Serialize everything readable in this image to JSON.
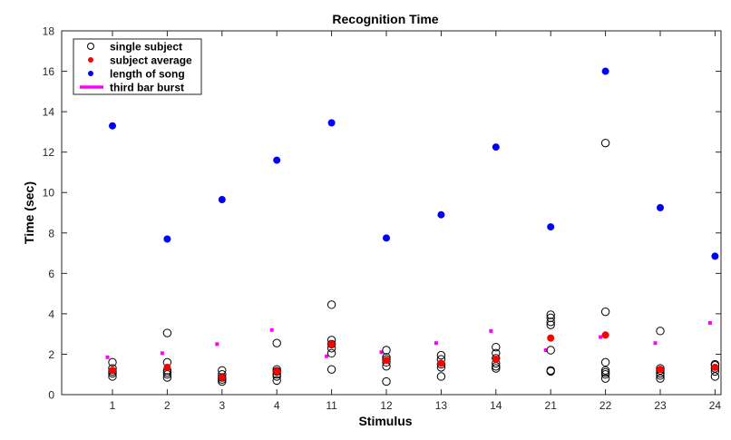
{
  "chart_data": {
    "type": "scatter",
    "title": "Recognition Time",
    "xlabel": "Stimulus",
    "ylabel": "Time (sec)",
    "categories": [
      "1",
      "2",
      "3",
      "4",
      "11",
      "12",
      "13",
      "14",
      "21",
      "22",
      "23",
      "24"
    ],
    "ylim": [
      0,
      18
    ],
    "yticks": [
      0,
      2,
      4,
      6,
      8,
      10,
      12,
      14,
      16,
      18
    ],
    "grid": false,
    "legend_position": "top-left",
    "legend": [
      "single subject",
      "subject average",
      "length of song",
      "third bar burst"
    ],
    "series": [
      {
        "name": "single subject",
        "marker": "open-circle",
        "color": "#000000",
        "values": [
          [
            0.9,
            1.05,
            1.15,
            1.3,
            1.6
          ],
          [
            0.85,
            1.0,
            1.1,
            1.2,
            1.6,
            3.05
          ],
          [
            0.65,
            0.75,
            0.85,
            1.0,
            1.2
          ],
          [
            0.7,
            0.9,
            1.0,
            1.15,
            1.25,
            2.55
          ],
          [
            1.25,
            2.05,
            2.3,
            2.5,
            2.7,
            4.45
          ],
          [
            0.65,
            1.4,
            1.6,
            1.75,
            1.85,
            2.2
          ],
          [
            0.9,
            1.35,
            1.5,
            1.75,
            1.95
          ],
          [
            1.3,
            1.4,
            1.55,
            1.8,
            2.05,
            2.35
          ],
          [
            1.15,
            1.2,
            2.2,
            3.45,
            3.6,
            3.8,
            3.95
          ],
          [
            0.8,
            1.0,
            1.1,
            1.2,
            1.6,
            4.1,
            12.45
          ],
          [
            0.8,
            0.95,
            1.05,
            1.2,
            1.3,
            3.15
          ],
          [
            0.9,
            1.15,
            1.3,
            1.45,
            1.5
          ]
        ]
      },
      {
        "name": "subject average",
        "marker": "filled-circle",
        "color": "#ff0000",
        "values": [
          1.2,
          1.35,
          0.85,
          1.15,
          2.5,
          1.7,
          1.55,
          1.75,
          2.8,
          2.95,
          1.25,
          1.35
        ]
      },
      {
        "name": "length of song",
        "marker": "filled-circle",
        "color": "#0000ff",
        "values": [
          13.3,
          7.7,
          9.65,
          11.6,
          13.45,
          7.75,
          8.9,
          12.25,
          8.3,
          16.0,
          9.25,
          6.85
        ]
      },
      {
        "name": "third bar burst",
        "marker": "square",
        "color": "#ff00ff",
        "values": [
          1.85,
          2.05,
          2.5,
          3.2,
          1.9,
          2.1,
          2.55,
          3.15,
          2.2,
          2.85,
          2.55,
          3.55
        ]
      }
    ]
  }
}
